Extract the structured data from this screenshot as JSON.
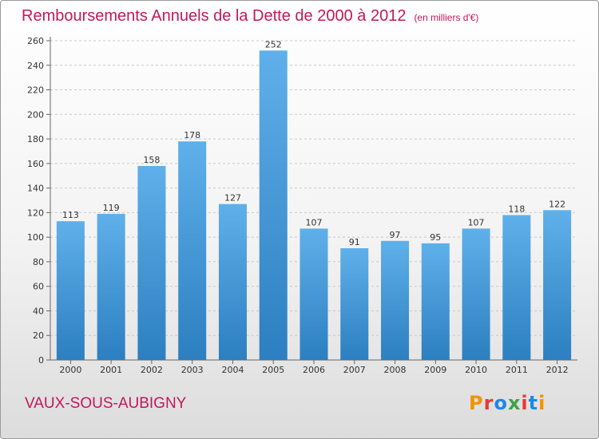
{
  "header": {
    "title": "Remboursements Annuels de la Dette de 2000 à 2012",
    "unit": "(en milliers d'€)"
  },
  "footer": {
    "place": "VAUX-SOUS-AUBIGNY",
    "logo_text": "Proxiti"
  },
  "colors": {
    "title": "#c2185b",
    "bar_top": "#5fb0ea",
    "bar_bottom": "#2c7fc0",
    "grid": "#c8c8c8",
    "logo": [
      "#f39200",
      "#e53935",
      "#1e88e5",
      "#43a047",
      "#e53935",
      "#1e88e5",
      "#f39200"
    ]
  },
  "chart_data": {
    "type": "bar",
    "title": "Remboursements Annuels de la Dette de 2000 à 2012",
    "subtitle": "(en milliers d'€)",
    "xlabel": "",
    "ylabel": "",
    "categories": [
      "2000",
      "2001",
      "2002",
      "2003",
      "2004",
      "2005",
      "2006",
      "2007",
      "2008",
      "2009",
      "2010",
      "2011",
      "2012"
    ],
    "values": [
      113,
      119,
      158,
      178,
      127,
      252,
      107,
      91,
      97,
      95,
      107,
      118,
      122
    ],
    "ylim": [
      0,
      260
    ],
    "yticks": [
      0,
      20,
      40,
      60,
      80,
      100,
      120,
      140,
      160,
      180,
      200,
      220,
      240,
      260
    ],
    "grid": "horizontal dashed",
    "legend": "none"
  }
}
